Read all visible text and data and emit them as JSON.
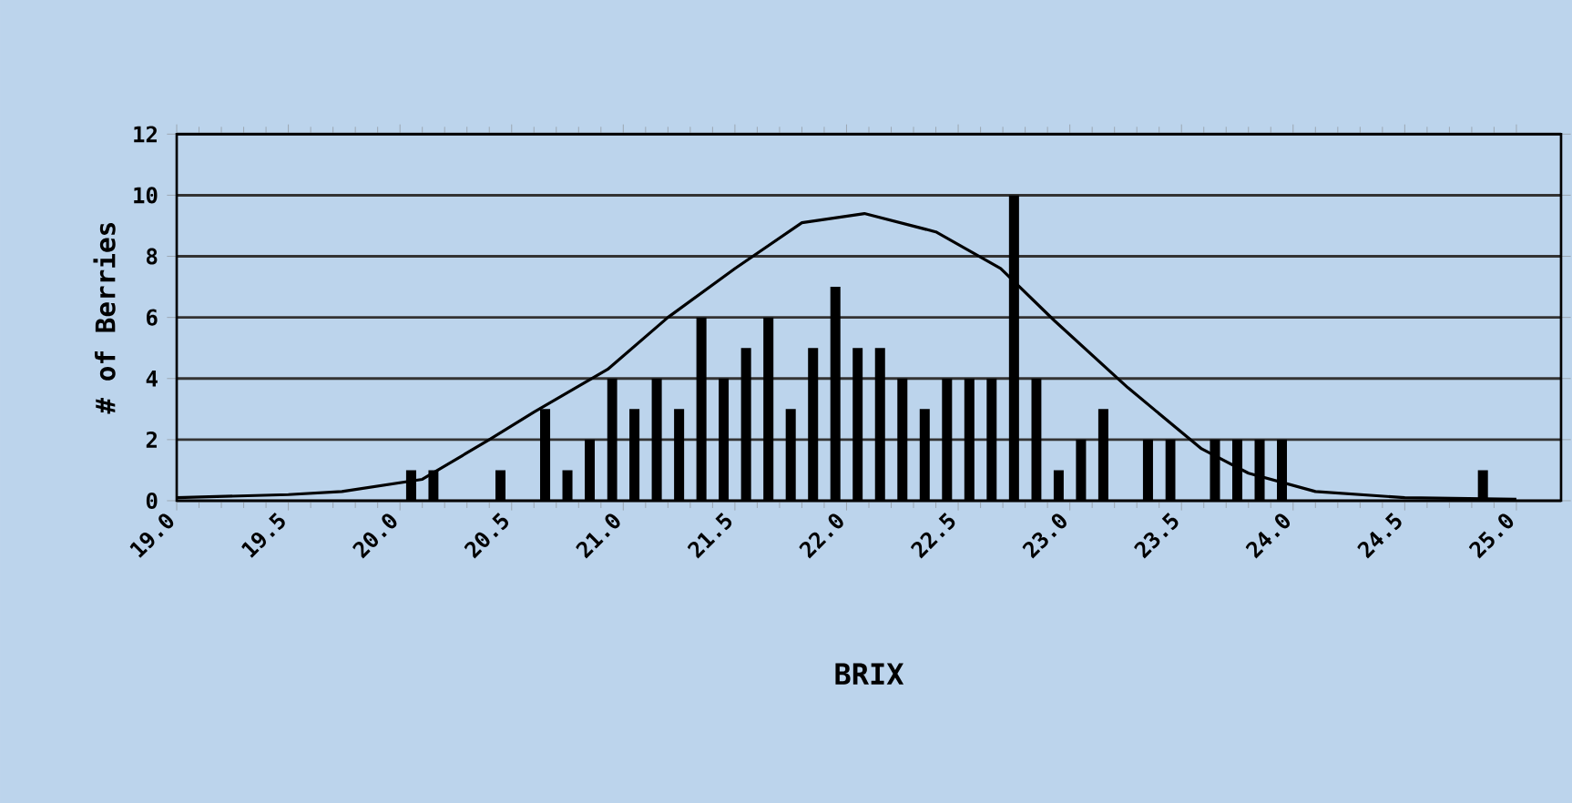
{
  "chart_data": {
    "type": "histogram",
    "xlabel": "BRIX",
    "ylabel": "# of Berries",
    "color": "#000000",
    "bins": [
      19.0,
      19.1,
      19.2,
      19.3,
      19.4,
      19.5,
      19.6,
      19.7,
      19.8,
      19.9,
      20.0,
      20.1,
      20.2,
      20.3,
      20.4,
      20.5,
      20.6,
      20.7,
      20.8,
      20.9,
      21.0,
      21.1,
      21.2,
      21.3,
      21.4,
      21.5,
      21.6,
      21.7,
      21.8,
      21.9,
      22.0,
      22.1,
      22.2,
      22.3,
      22.4,
      22.5,
      22.6,
      22.7,
      22.8,
      22.9,
      23.0,
      23.1,
      23.2,
      23.3,
      23.4,
      23.5,
      23.6,
      23.7,
      23.8,
      23.9,
      24.0,
      24.1,
      24.2,
      24.3,
      24.4,
      24.5,
      24.6,
      24.7,
      24.8,
      24.9,
      25.0,
      25.1,
      25.2
    ],
    "values": [
      0,
      0,
      0,
      0,
      0,
      0,
      0,
      0,
      0,
      0,
      1,
      1,
      0,
      0,
      1,
      0,
      3,
      1,
      2,
      4,
      3,
      4,
      3,
      6,
      4,
      5,
      6,
      3,
      5,
      7,
      5,
      5,
      4,
      3,
      4,
      4,
      4,
      10,
      4,
      1,
      2,
      3,
      0,
      2,
      2,
      0,
      2,
      2,
      2,
      2,
      0,
      0,
      0,
      0,
      0,
      0,
      0,
      0,
      1,
      0,
      0,
      0
    ],
    "series": [
      {
        "type": "line",
        "color": "#000000",
        "x": [
          19.0,
          19.5,
          19.74,
          20.1,
          20.4,
          20.6,
          20.93,
          21.2,
          21.5,
          21.8,
          22.08,
          22.4,
          22.69,
          22.93,
          23.26,
          23.59,
          23.8,
          24.1,
          24.5,
          25.0
        ],
        "values": [
          0.1,
          0.2,
          0.3,
          0.7,
          2.0,
          2.9,
          4.3,
          6.0,
          7.6,
          9.1,
          9.4,
          8.8,
          7.6,
          5.9,
          3.7,
          1.7,
          0.9,
          0.3,
          0.1,
          0.05
        ]
      }
    ],
    "xlim": [
      19.0,
      25.2
    ],
    "ylim": [
      0,
      12
    ],
    "xticks": [
      {
        "value": 19.0,
        "label": "19.0"
      },
      {
        "value": 19.5,
        "label": "19.5"
      },
      {
        "value": 20.0,
        "label": "20.0"
      },
      {
        "value": 20.5,
        "label": "20.5"
      },
      {
        "value": 21.0,
        "label": "21.0"
      },
      {
        "value": 21.5,
        "label": "21.5"
      },
      {
        "value": 22.0,
        "label": "22.0"
      },
      {
        "value": 22.5,
        "label": "22.5"
      },
      {
        "value": 23.0,
        "label": "23.0"
      },
      {
        "value": 23.5,
        "label": "23.5"
      },
      {
        "value": 24.0,
        "label": "24.0"
      },
      {
        "value": 24.5,
        "label": "24.5"
      },
      {
        "value": 25.0,
        "label": "25.0"
      }
    ],
    "yticks": [
      0,
      2,
      4,
      6,
      8,
      10,
      12
    ],
    "grid": "y"
  }
}
